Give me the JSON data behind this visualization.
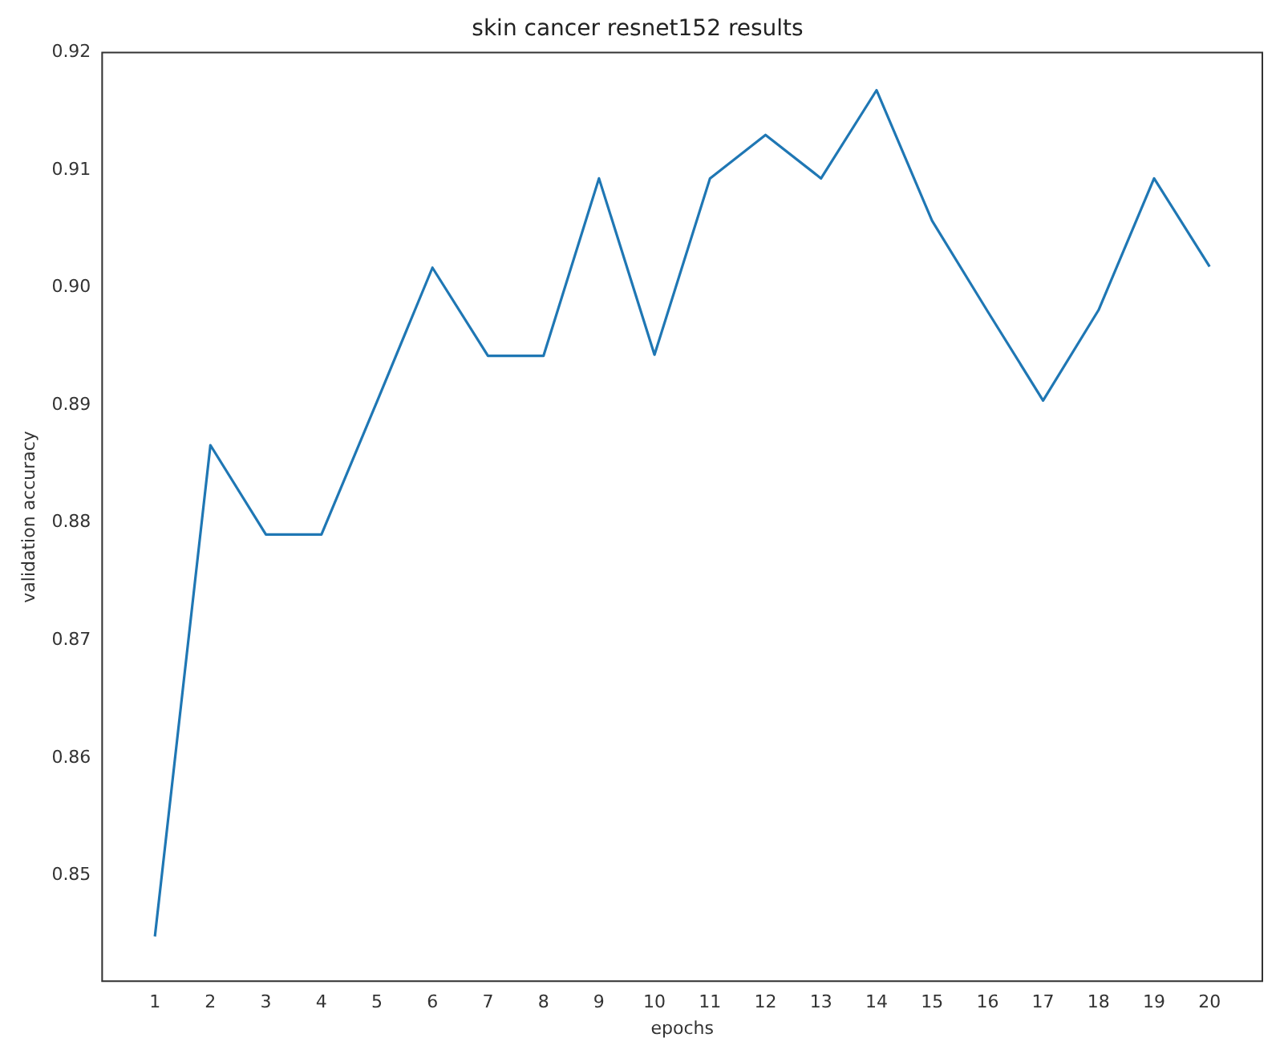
{
  "chart_data": {
    "type": "line",
    "title": "skin cancer resnet152 results",
    "xlabel": "epochs",
    "ylabel": "validation accuracy",
    "x": [
      1,
      2,
      3,
      4,
      5,
      6,
      7,
      8,
      9,
      10,
      11,
      12,
      13,
      14,
      15,
      16,
      17,
      18,
      19,
      20
    ],
    "series": [
      {
        "color": "#1f77b4",
        "values": [
          0.8448,
          0.8866,
          0.879,
          0.879,
          0.8903,
          0.9017,
          0.8942,
          0.8942,
          0.9093,
          0.8943,
          0.9093,
          0.913,
          0.9093,
          0.9168,
          0.9057,
          0.898,
          0.8904,
          0.8981,
          0.9093,
          0.9018
        ]
      }
    ],
    "xlim": [
      0.05,
      20.95
    ],
    "xticks": [
      1,
      2,
      3,
      4,
      5,
      6,
      7,
      8,
      9,
      10,
      11,
      12,
      13,
      14,
      15,
      16,
      17,
      18,
      19,
      20
    ],
    "ylim": [
      0.841,
      0.92
    ],
    "yticks": [
      0.85,
      0.86,
      0.87,
      0.88,
      0.89,
      {
        "value": 0.9,
        "label": "0.90"
      },
      0.91,
      0.92
    ],
    "grid": false,
    "legend": false,
    "marker": "none",
    "line_style": "solid"
  }
}
